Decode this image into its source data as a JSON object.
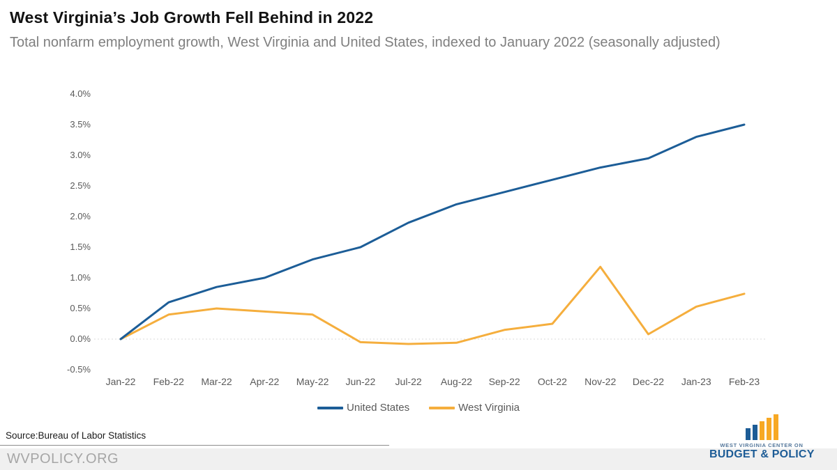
{
  "header": {
    "title": "West Virginia’s Job Growth Fell Behind in 2022",
    "subtitle": "Total nonfarm employment growth, West Virginia and United States, indexed to January 2022 (seasonally adjusted)"
  },
  "chart_data": {
    "type": "line",
    "categories": [
      "Jan-22",
      "Feb-22",
      "Mar-22",
      "Apr-22",
      "May-22",
      "Jun-22",
      "Jul-22",
      "Aug-22",
      "Sep-22",
      "Oct-22",
      "Nov-22",
      "Dec-22",
      "Jan-23",
      "Feb-23"
    ],
    "series": [
      {
        "name": "United States",
        "color": "#1c5d97",
        "values": [
          0.0,
          0.6,
          0.85,
          1.0,
          1.3,
          1.5,
          1.9,
          2.2,
          2.4,
          2.6,
          2.8,
          2.95,
          3.3,
          3.5
        ]
      },
      {
        "name": "West Virginia",
        "color": "#f5ae3d",
        "values": [
          0.0,
          0.4,
          0.5,
          0.45,
          0.4,
          -0.05,
          -0.08,
          -0.06,
          0.15,
          0.25,
          1.18,
          0.08,
          0.53,
          0.74
        ]
      }
    ],
    "y_tick_labels": [
      "4.0%",
      "3.5%",
      "3.0%",
      "2.5%",
      "2.0%",
      "1.5%",
      "1.0%",
      "0.5%",
      "0.0%",
      "-0.5%"
    ],
    "ylim": [
      -0.5,
      4.0
    ],
    "xlabel": "",
    "ylabel": "",
    "grid": "zero-baseline dotted only",
    "legend_position": "bottom-center"
  },
  "source": {
    "label": "Source:Bureau of Labor Statistics"
  },
  "footer": {
    "site": "WVPOLICY.ORG"
  },
  "logo": {
    "line1": "WEST VIRGINIA CENTER ON",
    "line2": "BUDGET & POLICY"
  }
}
